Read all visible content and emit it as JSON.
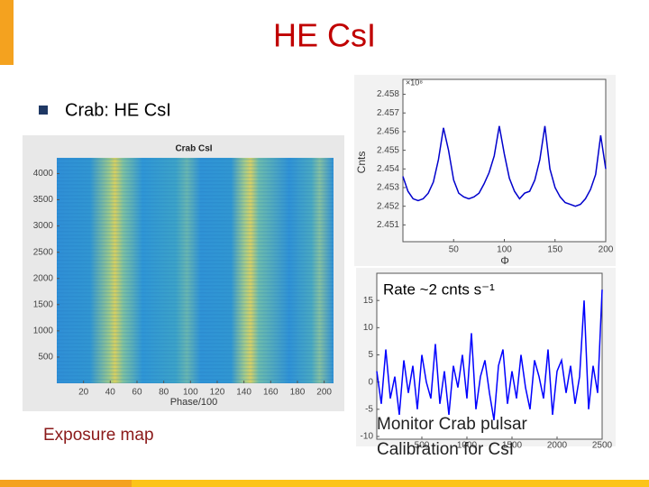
{
  "title": "HE CsI",
  "bullet": "Crab: HE CsI",
  "heatmap": {
    "title": "Crab CsI",
    "xlabel": "Phase/100",
    "xlim": [
      0,
      207
    ],
    "ylim": [
      0,
      4300
    ],
    "xticks": [
      20,
      40,
      60,
      80,
      100,
      120,
      140,
      160,
      180,
      200
    ],
    "yticks": [
      500,
      1000,
      1500,
      2000,
      2500,
      3000,
      3500,
      4000
    ]
  },
  "profile": {
    "type": "line",
    "ylabel": "Cnts",
    "xlabel": "Φ",
    "multiplier": "×10⁸",
    "color": "#0000cc",
    "xlim": [
      0,
      200
    ],
    "ylim": [
      2.4501,
      2.4588
    ],
    "xticks": [
      50,
      100,
      150,
      200
    ],
    "yticks": [
      2.451,
      2.452,
      2.453,
      2.454,
      2.455,
      2.456,
      2.457,
      2.458
    ],
    "x": [
      0,
      5,
      10,
      15,
      20,
      25,
      30,
      35,
      40,
      45,
      50,
      55,
      60,
      65,
      70,
      75,
      80,
      85,
      90,
      95,
      100,
      105,
      110,
      115,
      120,
      125,
      130,
      135,
      140,
      145,
      150,
      155,
      160,
      165,
      170,
      175,
      180,
      185,
      190,
      195,
      200
    ],
    "values": [
      2.4536,
      2.4528,
      2.4524,
      2.4523,
      2.4524,
      2.4527,
      2.4533,
      2.4545,
      2.4562,
      2.455,
      2.4534,
      2.4527,
      2.4525,
      2.4524,
      2.4525,
      2.4527,
      2.4532,
      2.4538,
      2.4547,
      2.4563,
      2.4548,
      2.4535,
      2.4528,
      2.4524,
      2.4527,
      2.4528,
      2.4534,
      2.4545,
      2.4563,
      2.454,
      2.453,
      2.4525,
      2.4522,
      2.4521,
      2.452,
      2.4521,
      2.4524,
      2.4529,
      2.4537,
      2.4558,
      2.454
    ]
  },
  "rate": {
    "type": "line",
    "label": "Rate ~2 cnts s⁻¹",
    "color": "#0000ff",
    "xlim": [
      0,
      2500
    ],
    "ylim": [
      -10.5,
      20
    ],
    "xticks": [
      500,
      1000,
      1500,
      2000,
      2500
    ],
    "yticks": [
      15,
      10,
      5,
      0,
      -5,
      -10
    ],
    "x": [
      0,
      50,
      100,
      150,
      200,
      250,
      300,
      350,
      400,
      450,
      500,
      550,
      600,
      650,
      700,
      750,
      800,
      850,
      900,
      950,
      1000,
      1050,
      1100,
      1150,
      1200,
      1250,
      1300,
      1350,
      1400,
      1450,
      1500,
      1550,
      1600,
      1650,
      1700,
      1750,
      1800,
      1850,
      1900,
      1950,
      2000,
      2050,
      2100,
      2150,
      2200,
      2250,
      2300,
      2350,
      2400,
      2450,
      2500
    ],
    "values": [
      2,
      -4,
      6,
      -3,
      1,
      -6,
      4,
      -2,
      3,
      -5,
      5,
      0,
      -3,
      7,
      -4,
      2,
      -6,
      3,
      -1,
      5,
      -3,
      9,
      -5,
      1,
      4,
      -2,
      -7,
      3,
      6,
      -4,
      2,
      -3,
      5,
      -1,
      -5,
      4,
      1,
      -3,
      6,
      -6,
      2,
      4,
      -2,
      3,
      -4,
      1,
      15,
      -5,
      3,
      -2,
      17
    ]
  },
  "captions": {
    "exposure": "Exposure map",
    "monitor": "Monitor Crab pulsar",
    "calibration": "Calibration for CsI"
  }
}
